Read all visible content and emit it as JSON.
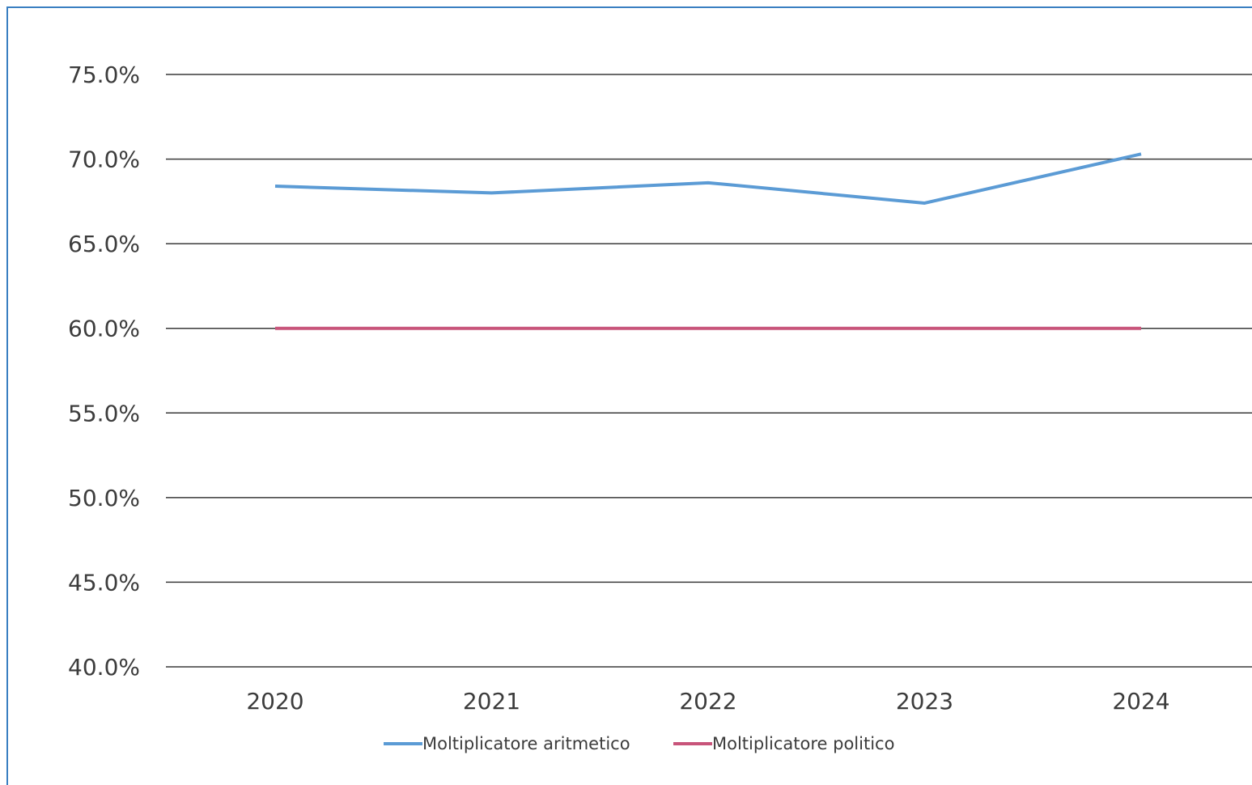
{
  "chart_data": {
    "type": "line",
    "categories": [
      "2020",
      "2021",
      "2022",
      "2023",
      "2024"
    ],
    "series": [
      {
        "name": "Moltiplicatore aritmetico",
        "values": [
          68.4,
          68.0,
          68.6,
          67.4,
          70.3
        ],
        "color": "#5b9bd5"
      },
      {
        "name": "Moltiplicatore politico",
        "values": [
          60.0,
          60.0,
          60.0,
          60.0,
          60.0
        ],
        "color": "#c8547a"
      }
    ],
    "y_ticks": [
      {
        "value": 75,
        "label": "75.0%"
      },
      {
        "value": 70,
        "label": "70.0%"
      },
      {
        "value": 65,
        "label": "65.0%"
      },
      {
        "value": 60,
        "label": "60.0%"
      },
      {
        "value": 55,
        "label": "55.0%"
      },
      {
        "value": 50,
        "label": "50.0%"
      },
      {
        "value": 45,
        "label": "45.0%"
      },
      {
        "value": 40,
        "label": "40.0%"
      }
    ],
    "ylim": [
      40,
      75
    ],
    "grid": true,
    "legend_position": "bottom"
  }
}
